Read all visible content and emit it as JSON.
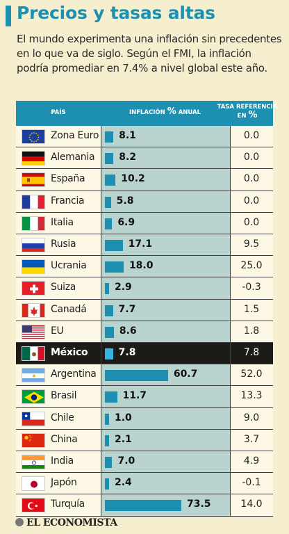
{
  "header": {
    "title": "Precios y tasas altas",
    "subtitle": "El mundo experimenta una inflación sin precedentes en lo que va de siglo. Según el FMI, la inflación podría promediar en 7.4% a nivel global este año."
  },
  "columns": {
    "country": "PAÍS",
    "inflation_pre": "INFLACIÓN ",
    "inflation_pct": "%",
    "inflation_post": " ANUAL",
    "rate_line1": "TASA REFERENCIA",
    "rate_line2_pre": "EN ",
    "rate_pct": "%"
  },
  "footer": {
    "source": "EL ECONOMISTA"
  },
  "colors": {
    "accent": "#1d8fb0",
    "highlight_row": "#1d1b18",
    "background": "#f5efcf"
  },
  "chart_data": {
    "type": "table",
    "highlighted": "México",
    "rows": [
      {
        "country": "Zona Euro",
        "flag": "eu-flag-icon",
        "inflation": 8.1,
        "inflation_label": "8.1",
        "rate": "0.0"
      },
      {
        "country": "Alemania",
        "flag": "germany-flag-icon",
        "inflation": 8.2,
        "inflation_label": "8.2",
        "rate": "0.0"
      },
      {
        "country": "España",
        "flag": "spain-flag-icon",
        "inflation": 10.2,
        "inflation_label": "10.2",
        "rate": "0.0"
      },
      {
        "country": "Francia",
        "flag": "france-flag-icon",
        "inflation": 5.8,
        "inflation_label": "5.8",
        "rate": "0.0"
      },
      {
        "country": "Italia",
        "flag": "italy-flag-icon",
        "inflation": 6.9,
        "inflation_label": "6.9",
        "rate": "0.0"
      },
      {
        "country": "Rusia",
        "flag": "russia-flag-icon",
        "inflation": 17.1,
        "inflation_label": "17.1",
        "rate": "9.5"
      },
      {
        "country": "Ucrania",
        "flag": "ukraine-flag-icon",
        "inflation": 18.0,
        "inflation_label": "18.0",
        "rate": "25.0"
      },
      {
        "country": "Suiza",
        "flag": "switzerland-flag-icon",
        "inflation": 2.9,
        "inflation_label": "2.9",
        "rate": "-0.3"
      },
      {
        "country": "Canadá",
        "flag": "canada-flag-icon",
        "inflation": 7.7,
        "inflation_label": "7.7",
        "rate": "1.5"
      },
      {
        "country": "EU",
        "flag": "usa-flag-icon",
        "inflation": 8.6,
        "inflation_label": "8.6",
        "rate": "1.8"
      },
      {
        "country": "México",
        "flag": "mexico-flag-icon",
        "inflation": 7.8,
        "inflation_label": "7.8",
        "rate": "7.8"
      },
      {
        "country": "Argentina",
        "flag": "argentina-flag-icon",
        "inflation": 60.7,
        "inflation_label": "60.7",
        "rate": "52.0"
      },
      {
        "country": "Brasil",
        "flag": "brazil-flag-icon",
        "inflation": 11.7,
        "inflation_label": "11.7",
        "rate": "13.3"
      },
      {
        "country": "Chile",
        "flag": "chile-flag-icon",
        "inflation": 1.0,
        "inflation_label": "1.0",
        "rate": "9.0"
      },
      {
        "country": "China",
        "flag": "china-flag-icon",
        "inflation": 2.1,
        "inflation_label": "2.1",
        "rate": "3.7"
      },
      {
        "country": "India",
        "flag": "india-flag-icon",
        "inflation": 7.0,
        "inflation_label": "7.0",
        "rate": "4.9"
      },
      {
        "country": "Japón",
        "flag": "japan-flag-icon",
        "inflation": 2.4,
        "inflation_label": "2.4",
        "rate": "-0.1"
      },
      {
        "country": "Turquía",
        "flag": "turkey-flag-icon",
        "inflation": 73.5,
        "inflation_label": "73.5",
        "rate": "14.0"
      }
    ]
  }
}
